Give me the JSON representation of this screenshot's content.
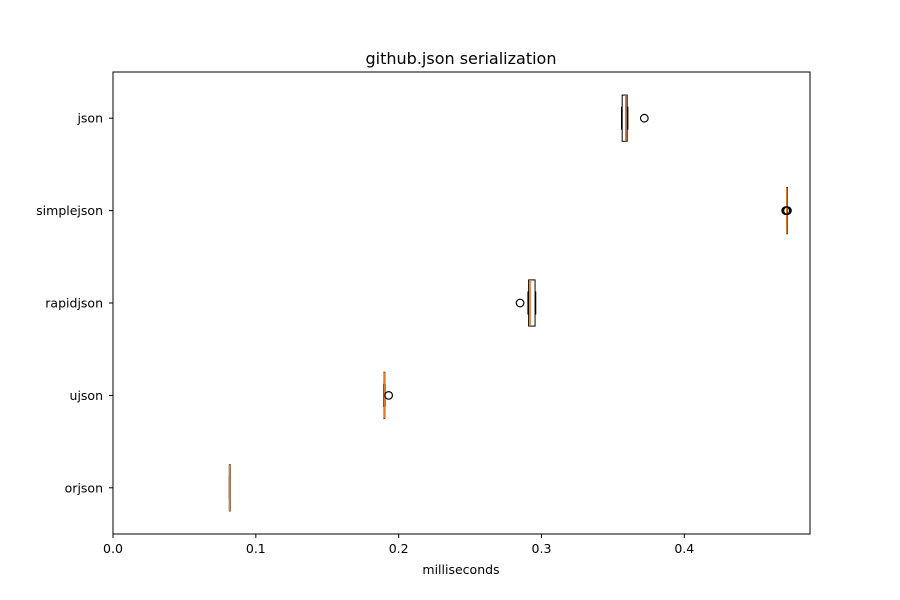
{
  "chart_data": {
    "type": "boxplot",
    "orientation": "horizontal",
    "title": "github.json serialization",
    "xlabel": "milliseconds",
    "ylabel": "",
    "xlim": [
      0,
      0.488
    ],
    "xticks": [
      0.0,
      0.1,
      0.2,
      0.3,
      0.4
    ],
    "xtick_labels": [
      "0.0",
      "0.1",
      "0.2",
      "0.3",
      "0.4"
    ],
    "grid": false,
    "categories": [
      "orjson",
      "ujson",
      "rapidjson",
      "simplejson",
      "json"
    ],
    "boxes": [
      {
        "label": "orjson",
        "whislo": 0.0814,
        "q1": 0.0815,
        "med": 0.0816,
        "q3": 0.0817,
        "whishi": 0.0818,
        "fliers": []
      },
      {
        "label": "ujson",
        "whislo": 0.1895,
        "q1": 0.1897,
        "med": 0.19,
        "q3": 0.1903,
        "whishi": 0.1905,
        "fliers": [
          0.193
        ]
      },
      {
        "label": "rapidjson",
        "whislo": 0.2905,
        "q1": 0.291,
        "med": 0.292,
        "q3": 0.2955,
        "whishi": 0.296,
        "fliers": [
          0.285
        ]
      },
      {
        "label": "simplejson",
        "whislo": 0.4716,
        "q1": 0.4717,
        "med": 0.4718,
        "q3": 0.4719,
        "whishi": 0.472,
        "fliers": [
          0.471,
          0.4715,
          0.4722
        ]
      },
      {
        "label": "json",
        "whislo": 0.356,
        "q1": 0.3565,
        "med": 0.359,
        "q3": 0.36,
        "whishi": 0.3605,
        "fliers": [
          0.372
        ]
      }
    ],
    "colors": {
      "box": "#000000",
      "median": "#e07b22",
      "flier": "#000000",
      "background": "#ffffff"
    }
  }
}
